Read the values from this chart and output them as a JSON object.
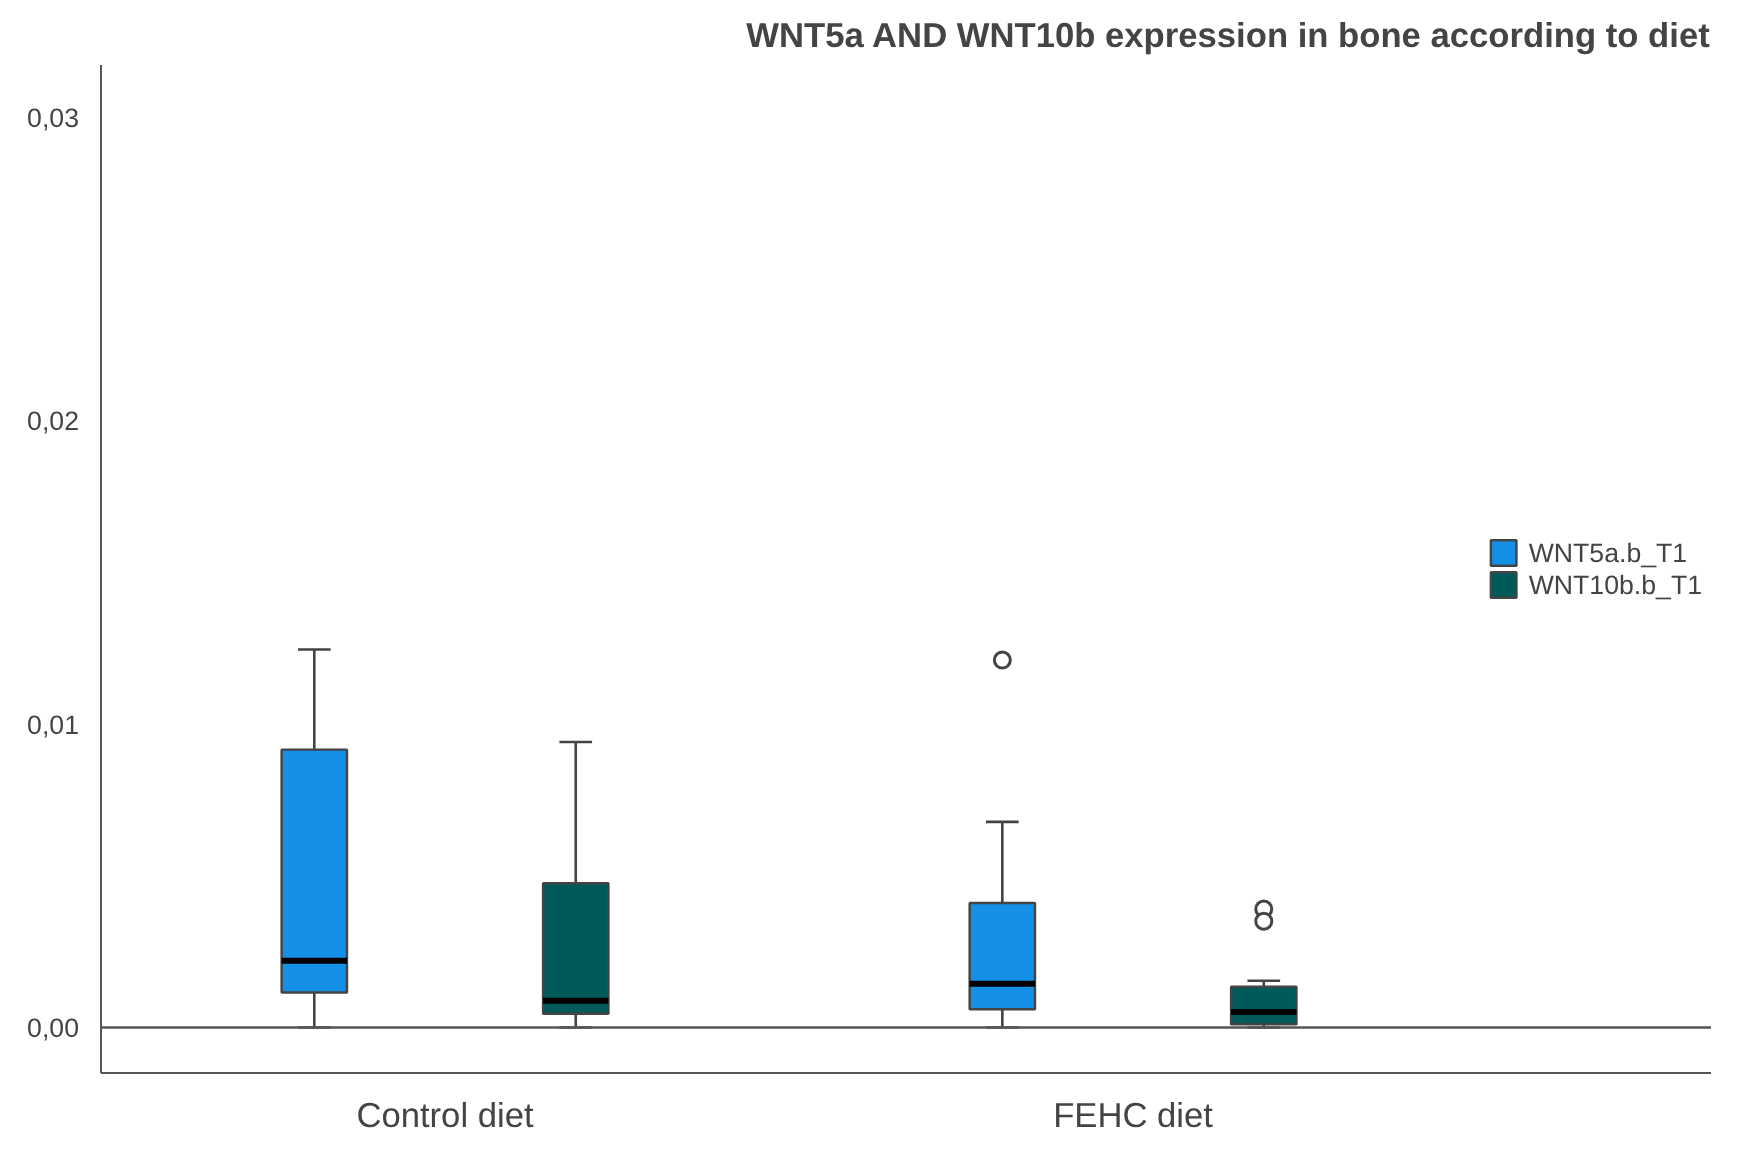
{
  "chart_data": {
    "type": "box",
    "title": "WNT5a AND WNT10b expression in bone according to diet",
    "categories": [
      "Control diet",
      "FEHC diet"
    ],
    "ylim": [
      -0.0015,
      0.0317
    ],
    "yticks": [
      {
        "value": 0,
        "label": "0,00"
      },
      {
        "value": 0.01,
        "label": "0,01"
      },
      {
        "value": 0.02,
        "label": "0,02"
      },
      {
        "value": 0.03,
        "label": "0,03"
      }
    ],
    "grid": false,
    "legend": "right",
    "ref_lines": [
      {
        "axis": "y",
        "value": 0
      }
    ],
    "series": [
      {
        "name": "WNT5a.b_T1",
        "color": "#1490e6",
        "boxes": [
          {
            "low": 0,
            "q1": 0.00115,
            "median": 0.0022,
            "q3": 0.00915,
            "high": 0.01245
          },
          {
            "low": 0,
            "q1": 0.0006,
            "median": 0.00144,
            "q3": 0.0041,
            "high": 0.00677,
            "outliers": [
              0.0121
            ]
          }
        ]
      },
      {
        "name": "WNT10b.b_T1",
        "color": "#005a5a",
        "boxes": [
          {
            "low": 0,
            "q1": 0.00045,
            "median": 0.00088,
            "q3": 0.00475,
            "high": 0.0094
          },
          {
            "low": 0,
            "q1": 0.0001,
            "median": 0.00051,
            "q3": 0.00134,
            "high": 0.00154,
            "outliers": [
              0.0039,
              0.0035
            ]
          }
        ]
      }
    ]
  }
}
